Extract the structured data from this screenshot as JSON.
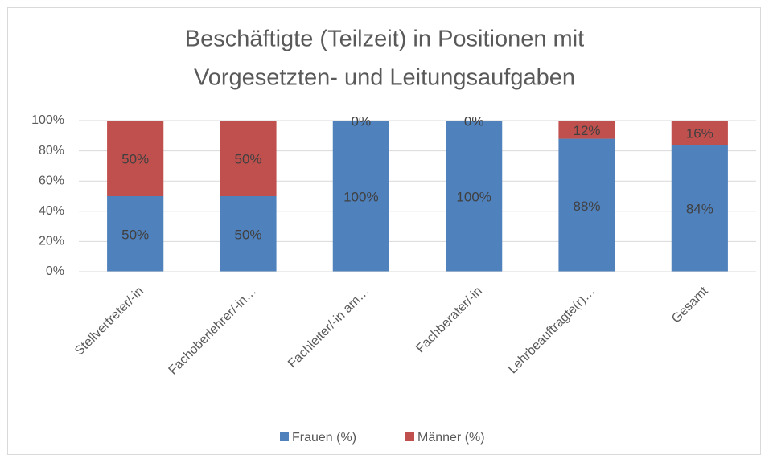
{
  "chart_data": {
    "type": "stacked_bar",
    "title": [
      "Beschäftigte (Teilzeit) in Positionen mit",
      "Vorgesetzten- und Leitungsaufgaben"
    ],
    "categories": [
      "Stellvertreter/-in",
      "Fachoberlehrer/-in…",
      "Fachleiter/-in am…",
      "Fachberater/-in",
      "Lehrbeauftragte(r)…",
      "Gesamt"
    ],
    "series": [
      {
        "name": "Frauen (%)",
        "color": "#4f81bd",
        "values": [
          50,
          50,
          100,
          100,
          88,
          84
        ],
        "value_labels": [
          "50%",
          "50%",
          "100%",
          "100%",
          "88%",
          "84%"
        ]
      },
      {
        "name": "Männer (%)",
        "color": "#c0504d",
        "values": [
          50,
          50,
          0,
          0,
          12,
          16
        ],
        "value_labels": [
          "50%",
          "50%",
          "0%",
          "0%",
          "12%",
          "16%"
        ]
      }
    ],
    "ylim": [
      0,
      100
    ],
    "yticks": [
      {
        "value": 0,
        "label": "0%"
      },
      {
        "value": 20,
        "label": "20%"
      },
      {
        "value": 40,
        "label": "40%"
      },
      {
        "value": 60,
        "label": "60%"
      },
      {
        "value": 80,
        "label": "80%"
      },
      {
        "value": 100,
        "label": "100%"
      }
    ],
    "grid": true,
    "legend": "bottom"
  }
}
